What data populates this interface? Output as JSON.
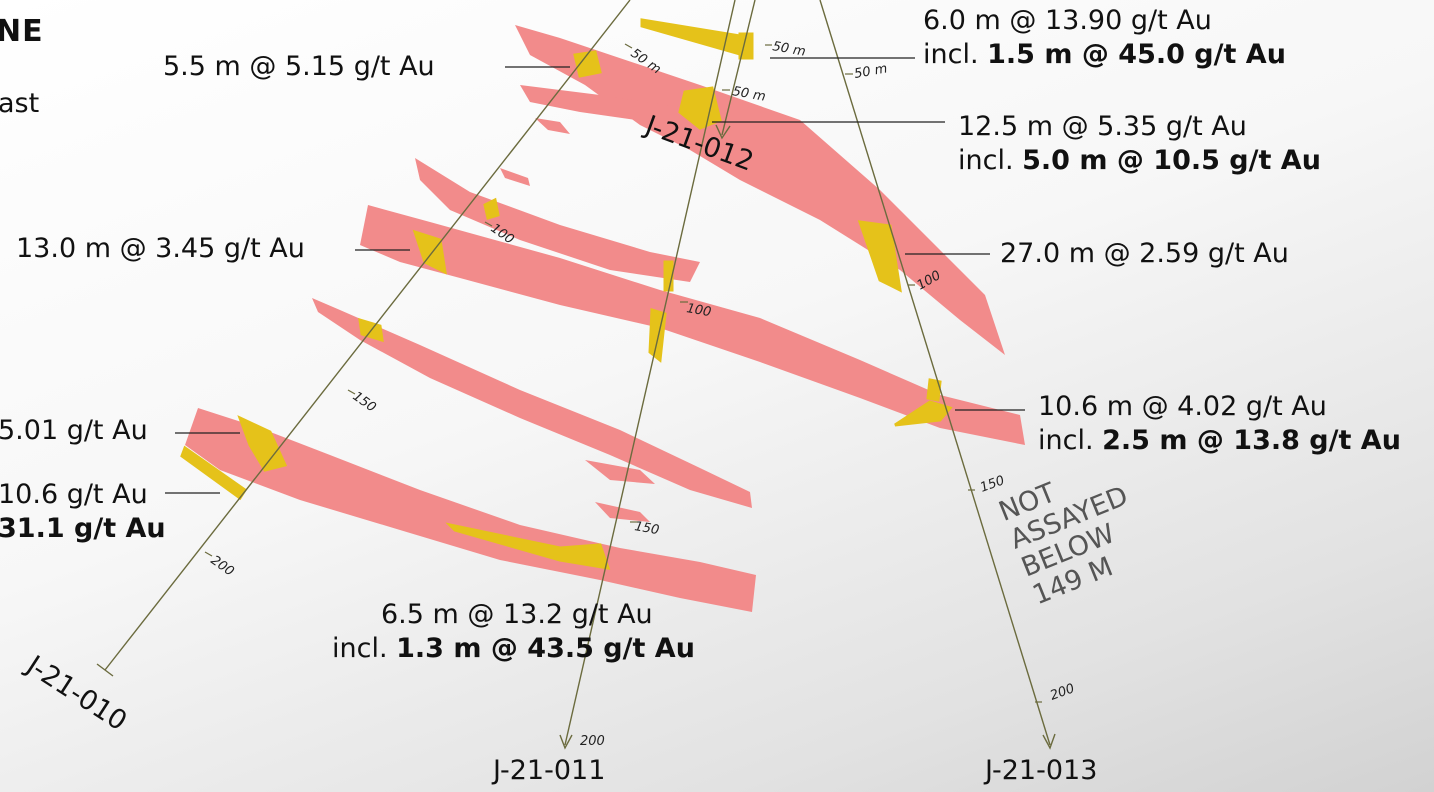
{
  "header": {
    "title": "NE",
    "subtitle": "ast"
  },
  "colors": {
    "vein": "#f28b8b",
    "gold": "#e5c21a",
    "trace": "#6b6b3e"
  },
  "holes": [
    {
      "id": "J-21-010"
    },
    {
      "id": "J-21-011"
    },
    {
      "id": "J-21-012"
    },
    {
      "id": "J-21-013"
    }
  ],
  "depth_ticks": {
    "h010": [
      "50 m",
      "100",
      "150",
      "200"
    ],
    "h011": [
      "50 m",
      "100",
      "150",
      "200"
    ],
    "h012": [
      "50 m"
    ],
    "h013": [
      "50 m",
      "100",
      "150",
      "200"
    ]
  },
  "intercepts": {
    "i1": {
      "main": "6.0 m @ 13.90 g/t Au",
      "incl_prefix": "incl. ",
      "incl": "1.5 m @ 45.0 g/t Au"
    },
    "i2": {
      "main": "5.5 m @ 5.15 g/t Au"
    },
    "i3": {
      "main": "12.5 m @ 5.35 g/t Au",
      "incl_prefix": "incl. ",
      "incl": "5.0 m @ 10.5 g/t Au"
    },
    "i4": {
      "main": "13.0 m @ 3.45 g/t Au"
    },
    "i5": {
      "main": "27.0 m @ 2.59 g/t Au"
    },
    "i6": {
      "main": "10.6 m @ 4.02 g/t Au",
      "incl_prefix": "incl. ",
      "incl": "2.5 m @ 13.8 g/t Au"
    },
    "i7": {
      "main": "5.01 g/t Au"
    },
    "i8": {
      "main": "10.6 g/t Au",
      "incl": "31.1 g/t Au"
    },
    "i9": {
      "main": "6.5 m @ 13.2 g/t Au",
      "incl_prefix": "incl. ",
      "incl": "1.3 m @ 43.5 g/t Au"
    }
  },
  "not_assayed": [
    "NOT",
    "ASSAYED",
    "BELOW",
    "149 M"
  ]
}
